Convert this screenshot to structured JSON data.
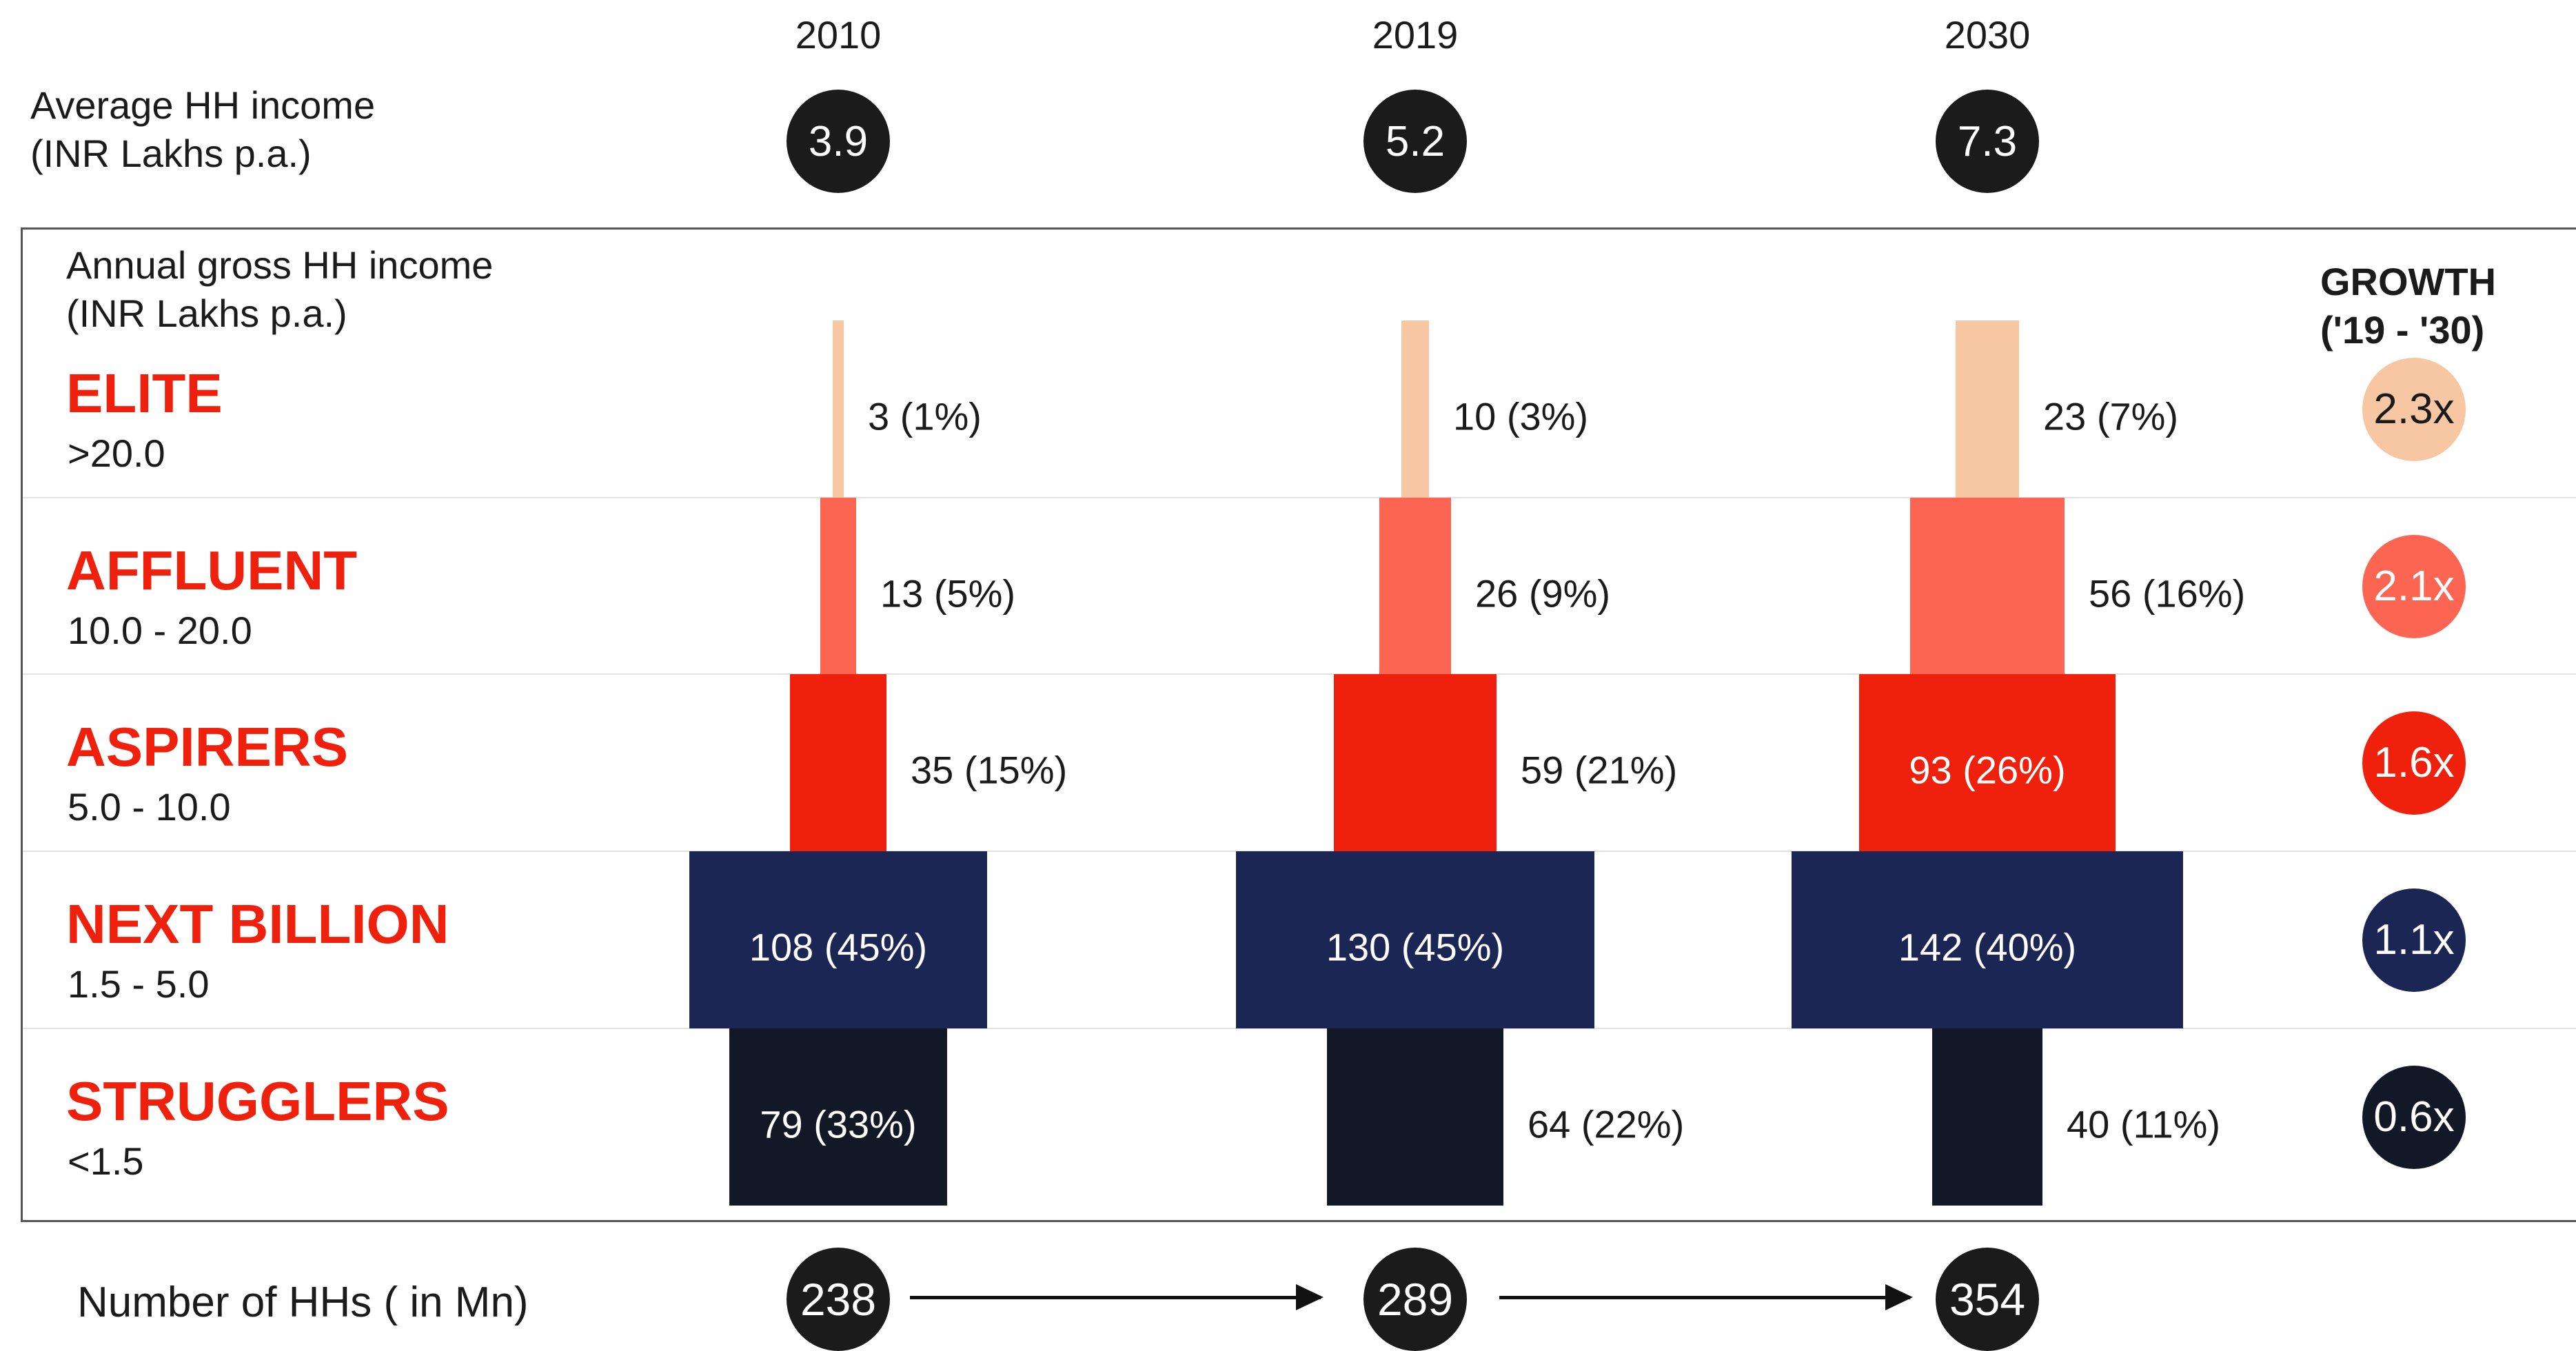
{
  "colors": {
    "ELITE": "#f7c7a3",
    "AFFLUENT": "#fd6553",
    "ASPIRERS": "#f0210c",
    "NEXT BILLION": "#1b2655",
    "STRUGGLERS": "#131826",
    "category_text": "#f0210c",
    "frame": "#555555"
  },
  "header": {
    "avg_income_label": "Average HH income",
    "avg_income_unit": "(INR Lakhs p.a.)",
    "gross_income_label": "Annual gross HH income",
    "gross_income_unit": "(INR Lakhs p.a.)",
    "growth_label": "GROWTH",
    "growth_period": "('19 - '30)"
  },
  "footer": {
    "households_label": "Number of HHs ( in Mn)"
  },
  "chart_data": {
    "type": "bar",
    "years": [
      "2010",
      "2019",
      "2030"
    ],
    "avg_income": [
      "3.9",
      "5.2",
      "7.3"
    ],
    "households_total": [
      "238",
      "289",
      "354"
    ],
    "segments": [
      {
        "name": "ELITE",
        "range": ">20.0",
        "growth": "2.3x",
        "values": [
          3,
          10,
          23
        ],
        "labels": [
          "3 (1%)",
          "10 (3%)",
          "23 (7%)"
        ]
      },
      {
        "name": "AFFLUENT",
        "range": "10.0 - 20.0",
        "growth": "2.1x",
        "values": [
          13,
          26,
          56
        ],
        "labels": [
          "13 (5%)",
          "26 (9%)",
          "56 (16%)"
        ]
      },
      {
        "name": "ASPIRERS",
        "range": "5.0 - 10.0",
        "growth": "1.6x",
        "values": [
          35,
          59,
          93
        ],
        "labels": [
          "35 (15%)",
          "59 (21%)",
          "93 (26%)"
        ]
      },
      {
        "name": "NEXT BILLION",
        "range": "1.5 - 5.0",
        "growth": "1.1x",
        "values": [
          108,
          130,
          142
        ],
        "labels": [
          "108 (45%)",
          "130 (45%)",
          "142 (40%)"
        ]
      },
      {
        "name": "STRUGGLERS",
        "range": "<1.5",
        "growth": "0.6x",
        "values": [
          79,
          64,
          40
        ],
        "labels": [
          "79 (33%)",
          "64 (22%)",
          "40 (11%)"
        ]
      }
    ]
  }
}
